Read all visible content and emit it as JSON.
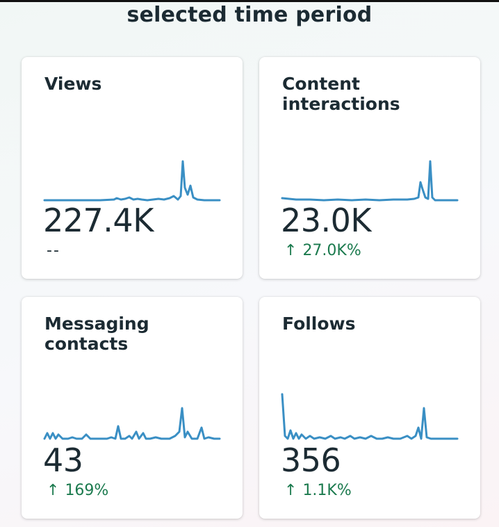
{
  "header": {
    "title": "selected time period"
  },
  "cards": [
    {
      "title": "Views",
      "value": "227.4K",
      "arrow": "",
      "change": "--",
      "trend": "neutral"
    },
    {
      "title": "Content\ninteractions",
      "value": "23.0K",
      "arrow": "↑",
      "change": "27.0K%",
      "trend": "up"
    },
    {
      "title": "Messaging\ncontacts",
      "value": "43",
      "arrow": "↑",
      "change": "169%",
      "trend": "up"
    },
    {
      "title": "Follows",
      "value": "356",
      "arrow": "↑",
      "change": "1.1K%",
      "trend": "up"
    }
  ],
  "colors": {
    "sparkline": "#3a8fc4",
    "positive": "#1b7a4e",
    "text": "#1c2b33"
  },
  "icons": {
    "up_arrow": "arrow-up-icon"
  }
}
